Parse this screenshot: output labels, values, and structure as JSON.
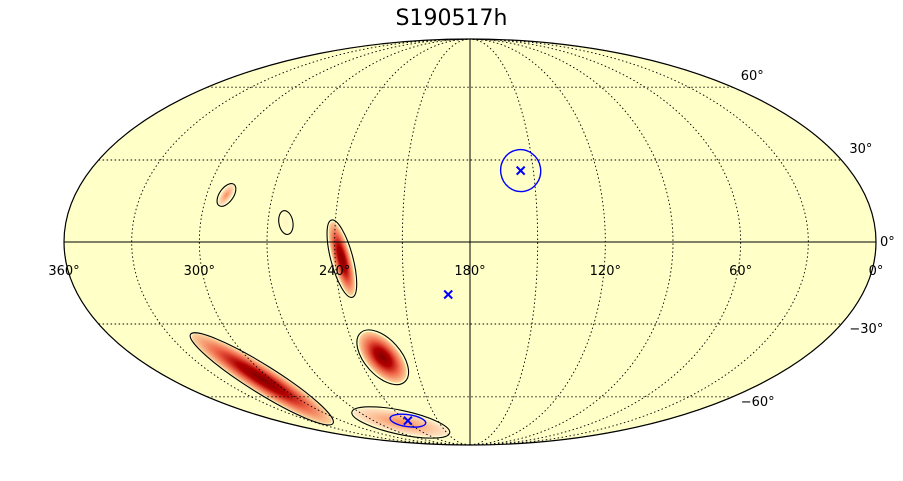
{
  "title": "S190517h",
  "projection": "mollweide",
  "lon_labels": [
    {
      "lon": 360,
      "text": "360°"
    },
    {
      "lon": 300,
      "text": "300°"
    },
    {
      "lon": 240,
      "text": "240°"
    },
    {
      "lon": 180,
      "text": "180°"
    },
    {
      "lon": 120,
      "text": "120°"
    },
    {
      "lon": 60,
      "text": "60°"
    },
    {
      "lon": 0,
      "text": "0°"
    }
  ],
  "lat_labels": [
    {
      "lat": 60,
      "text": "60°"
    },
    {
      "lat": 30,
      "text": "30°"
    },
    {
      "lat": 0,
      "text": "0°"
    },
    {
      "lat": -30,
      "text": "−30°"
    },
    {
      "lat": -60,
      "text": "−60°"
    }
  ],
  "grid": {
    "meridians_step_deg": 30,
    "parallels_step_deg": 30,
    "style": "dotted"
  },
  "colors": {
    "background_probability": "#ffffc8",
    "contour": "#000000",
    "marker": "#0000ff",
    "hot_low": "#fdd49e",
    "hot_mid": "#ef6548",
    "hot_high": "#7f0000"
  },
  "skymap_regions": [
    {
      "lon": 291,
      "lat": 17,
      "size": "small",
      "intensity": 0.4
    },
    {
      "lon": 262,
      "lat": 7,
      "size": "small",
      "intensity": 0.1
    },
    {
      "lon": 237,
      "lat": -6,
      "size": "medium",
      "intensity": 1.0
    },
    {
      "lon": 227,
      "lat": -43,
      "size": "medium",
      "intensity": 1.0
    },
    {
      "lon": 305,
      "lat": -52,
      "size": "long",
      "intensity": 1.0
    },
    {
      "lon": 247,
      "lat": -73,
      "size": "long",
      "intensity": 0.6
    }
  ],
  "markers": [
    {
      "lon": 156,
      "lat": 26,
      "symbol": "x",
      "circle": true
    },
    {
      "lon": 190,
      "lat": -19,
      "symbol": "x",
      "circle": false
    },
    {
      "lon": 238,
      "lat": -72,
      "symbol": "x",
      "circle": true
    }
  ]
}
